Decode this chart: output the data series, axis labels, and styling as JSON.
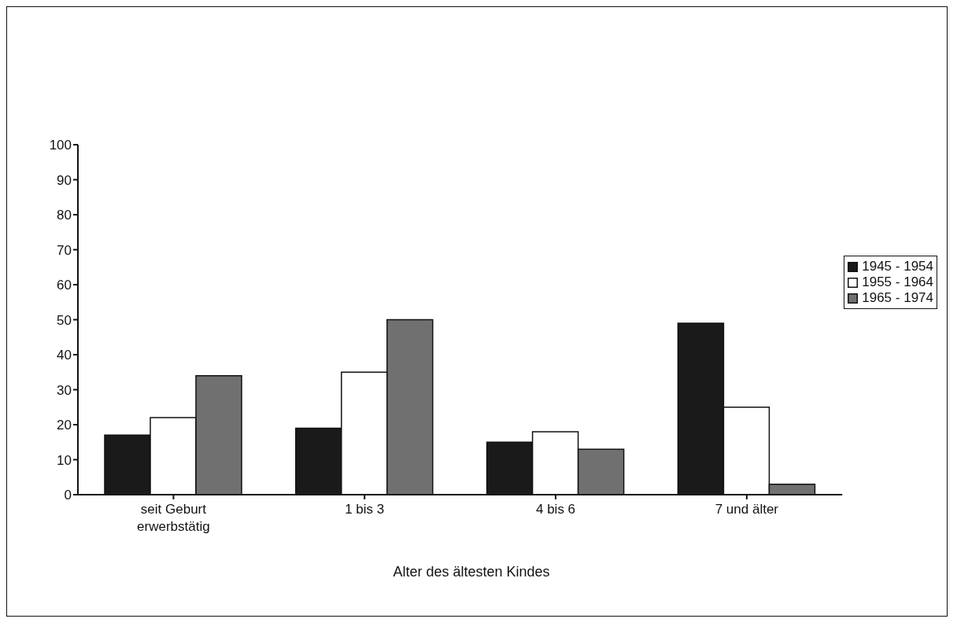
{
  "chart_data": {
    "type": "bar",
    "xlabel": "Alter des ältesten Kindes",
    "categories": [
      "seit Geburt erwerbstätig",
      "1 bis 3",
      "4 bis 6",
      "7 und älter"
    ],
    "series": [
      {
        "name": "1945 - 1954",
        "color": "#1a1a1a",
        "values": [
          17,
          19,
          15,
          49
        ]
      },
      {
        "name": "1955 - 1964",
        "color": "#ffffff",
        "values": [
          22,
          35,
          18,
          25
        ]
      },
      {
        "name": "1965 - 1974",
        "color": "#707070",
        "values": [
          34,
          50,
          13,
          3
        ]
      }
    ],
    "ylim": [
      0,
      100
    ],
    "yticks": [
      0,
      10,
      20,
      30,
      40,
      50,
      60,
      70,
      80,
      90,
      100
    ],
    "grid": false,
    "legend": "right"
  }
}
